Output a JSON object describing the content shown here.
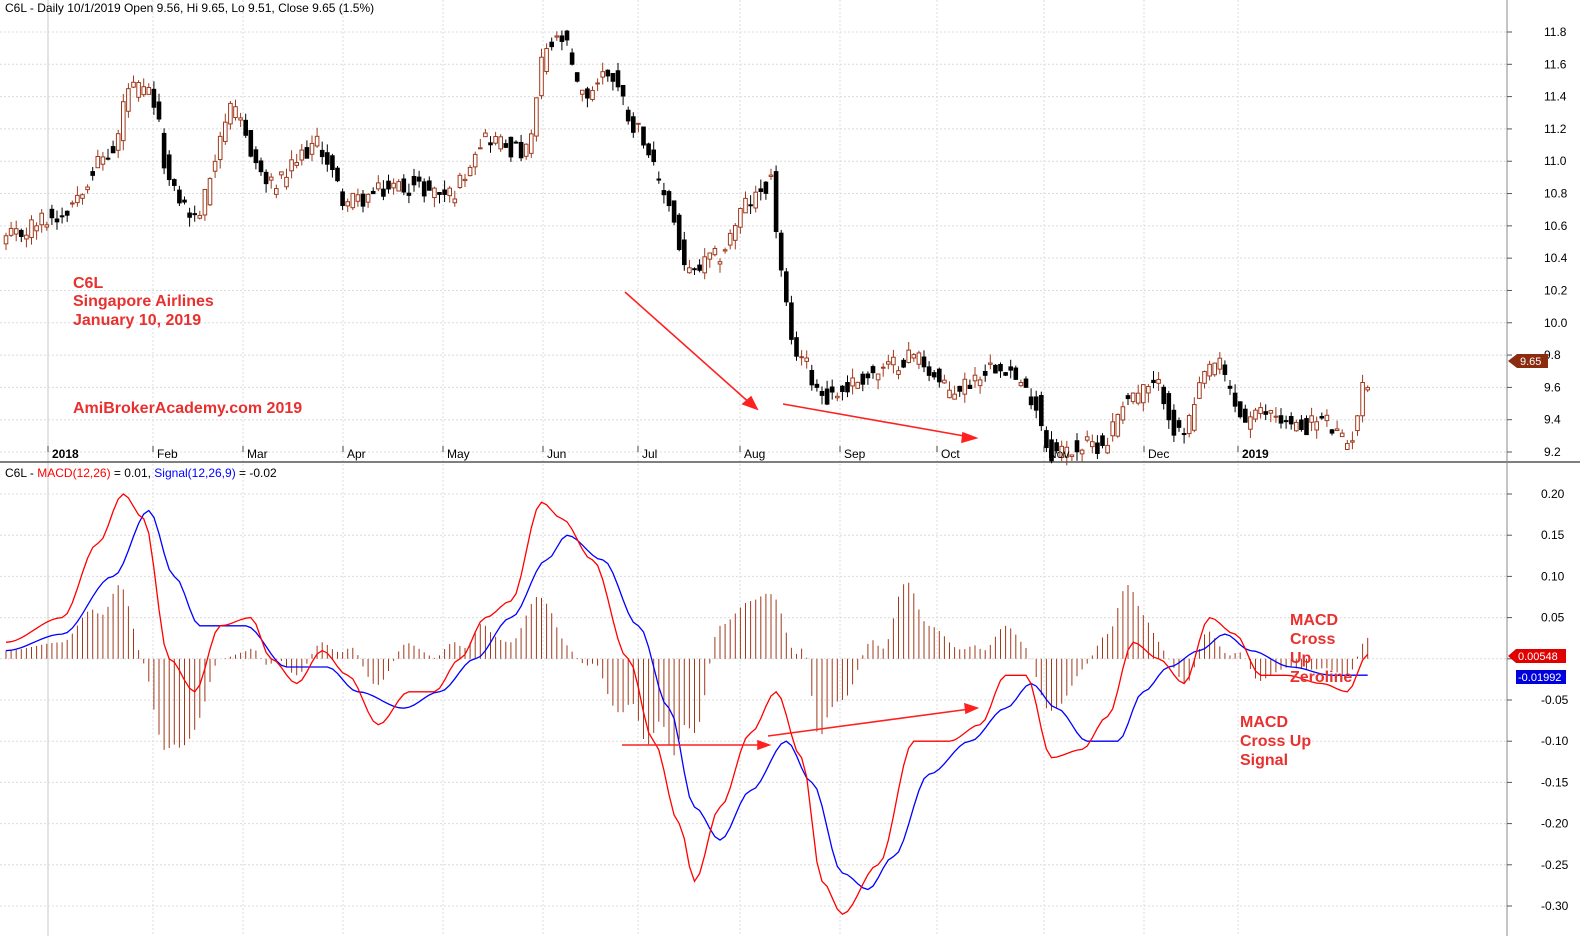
{
  "price_header": {
    "symbol": "C6L",
    "info": " - Daily 10/1/2019 Open 9.56, Hi 9.65, Lo 9.51, Close 9.65 (1.5%)"
  },
  "macd_header": {
    "symbol": "C6L - ",
    "macd_text": "MACD(12,26)",
    "macd_val": " = 0.01, ",
    "signal_text": "Signal(12,26,9)",
    "signal_val": " = -0.02"
  },
  "annotations": {
    "company_lines": [
      "C6L",
      "Singapore Airlines",
      "January 10, 2019"
    ],
    "site": "AmiBrokerAcademy.com  2019",
    "zeroline_lines": [
      "MACD",
      "Cross",
      "Up",
      "Zeroline"
    ],
    "signal_lines": [
      "MACD",
      "Cross Up",
      "Signal"
    ]
  },
  "badges": {
    "price_last": "9.65",
    "macd_last": "0.00548",
    "signal_last": "-0.01992"
  },
  "colors": {
    "up_candle": "#a0391c",
    "down_candle": "#000000",
    "macd_line": "#ff0000",
    "signal_line": "#0000ff",
    "histogram": "#a0391c",
    "annotation": "#e8312f",
    "price_badge": "#8b2b10",
    "macd_badge": "#e00000",
    "signal_badge": "#0000dd"
  },
  "chart_data": [
    {
      "type": "candlestick",
      "title": "C6L - Daily 10/1/2019 Open 9.56, Hi 9.65, Lo 9.51, Close 9.65 (1.5%)",
      "x_labels": [
        "2018",
        "Feb",
        "Mar",
        "Apr",
        "May",
        "Jun",
        "Jul",
        "Aug",
        "Sep",
        "Oct",
        "Nov",
        "Dec",
        "2019"
      ],
      "y_ticks": [
        9.2,
        9.4,
        9.6,
        9.8,
        10.0,
        10.2,
        10.4,
        10.6,
        10.8,
        11.0,
        11.2,
        11.4,
        11.6,
        11.8
      ],
      "ylim": [
        9.1,
        11.9
      ],
      "last_close": 9.65,
      "close_path": [
        [
          "2018-01-02",
          10.52
        ],
        [
          "2018-01-15",
          10.65
        ],
        [
          "2018-01-31",
          11.05
        ],
        [
          "2018-02-05",
          11.45
        ],
        [
          "2018-02-09",
          11.42
        ],
        [
          "2018-02-16",
          10.8
        ],
        [
          "2018-02-22",
          10.65
        ],
        [
          "2018-03-05",
          11.3
        ],
        [
          "2018-03-15",
          10.85
        ],
        [
          "2018-03-28",
          11.1
        ],
        [
          "2018-04-05",
          10.75
        ],
        [
          "2018-04-20",
          10.85
        ],
        [
          "2018-05-03",
          10.8
        ],
        [
          "2018-05-12",
          11.15
        ],
        [
          "2018-05-24",
          11.05
        ],
        [
          "2018-05-30",
          11.7
        ],
        [
          "2018-06-04",
          11.75
        ],
        [
          "2018-06-08",
          11.4
        ],
        [
          "2018-06-15",
          11.55
        ],
        [
          "2018-06-25",
          11.2
        ],
        [
          "2018-07-02",
          10.8
        ],
        [
          "2018-07-09",
          10.3
        ],
        [
          "2018-07-16",
          10.4
        ],
        [
          "2018-07-25",
          10.75
        ],
        [
          "2018-07-31",
          10.88
        ],
        [
          "2018-08-02",
          10.3
        ],
        [
          "2018-08-06",
          9.85
        ],
        [
          "2018-08-15",
          9.55
        ],
        [
          "2018-08-28",
          9.68
        ],
        [
          "2018-09-07",
          9.8
        ],
        [
          "2018-09-18",
          9.58
        ],
        [
          "2018-10-02",
          9.75
        ],
        [
          "2018-10-10",
          9.55
        ],
        [
          "2018-10-16",
          9.2
        ],
        [
          "2018-10-30",
          9.25
        ],
        [
          "2018-11-06",
          9.55
        ],
        [
          "2018-11-14",
          9.6
        ],
        [
          "2018-11-20",
          9.3
        ],
        [
          "2018-11-29",
          9.75
        ],
        [
          "2018-12-07",
          9.4
        ],
        [
          "2018-12-14",
          9.45
        ],
        [
          "2018-12-21",
          9.35
        ],
        [
          "2018-12-28",
          9.4
        ],
        [
          "2019-01-04",
          9.25
        ],
        [
          "2019-01-10",
          9.65
        ]
      ]
    },
    {
      "type": "line",
      "title": "C6L - MACD(12,26) = 0.01, Signal(12,26,9) = -0.02",
      "y_ticks": [
        0.2,
        0.15,
        0.1,
        0.05,
        0.0,
        -0.05,
        -0.1,
        -0.15,
        -0.2,
        -0.25,
        -0.3
      ],
      "ylim": [
        -0.315,
        0.225
      ],
      "series": [
        {
          "name": "MACD(12,26)",
          "points": [
            [
              "2018-01-02",
              0.02
            ],
            [
              "2018-01-17",
              0.05
            ],
            [
              "2018-01-26",
              0.14
            ],
            [
              "2018-02-02",
              0.2
            ],
            [
              "2018-02-08",
              0.17
            ],
            [
              "2018-02-15",
              0.0
            ],
            [
              "2018-02-22",
              -0.04
            ],
            [
              "2018-03-01",
              0.04
            ],
            [
              "2018-03-09",
              0.05
            ],
            [
              "2018-03-15",
              0.0
            ],
            [
              "2018-03-22",
              -0.03
            ],
            [
              "2018-03-29",
              0.01
            ],
            [
              "2018-04-05",
              -0.02
            ],
            [
              "2018-04-13",
              -0.08
            ],
            [
              "2018-04-21",
              -0.04
            ],
            [
              "2018-04-30",
              -0.04
            ],
            [
              "2018-05-07",
              0.0
            ],
            [
              "2018-05-14",
              0.05
            ],
            [
              "2018-05-21",
              0.07
            ],
            [
              "2018-05-29",
              0.19
            ],
            [
              "2018-06-04",
              0.17
            ],
            [
              "2018-06-12",
              0.12
            ],
            [
              "2018-06-21",
              0.0
            ],
            [
              "2018-06-28",
              -0.1
            ],
            [
              "2018-07-05",
              -0.2
            ],
            [
              "2018-07-10",
              -0.27
            ],
            [
              "2018-07-17",
              -0.18
            ],
            [
              "2018-07-25",
              -0.09
            ],
            [
              "2018-08-01",
              -0.04
            ],
            [
              "2018-08-08",
              -0.12
            ],
            [
              "2018-08-14",
              -0.27
            ],
            [
              "2018-08-20",
              -0.31
            ],
            [
              "2018-08-29",
              -0.25
            ],
            [
              "2018-09-07",
              -0.1
            ],
            [
              "2018-09-18",
              -0.1
            ],
            [
              "2018-09-26",
              -0.08
            ],
            [
              "2018-10-03",
              -0.02
            ],
            [
              "2018-10-09",
              -0.02
            ],
            [
              "2018-10-16",
              -0.12
            ],
            [
              "2018-10-24",
              -0.11
            ],
            [
              "2018-10-31",
              -0.07
            ],
            [
              "2018-11-07",
              0.02
            ],
            [
              "2018-11-14",
              0.0
            ],
            [
              "2018-11-21",
              -0.03
            ],
            [
              "2018-11-28",
              0.05
            ],
            [
              "2018-12-05",
              0.03
            ],
            [
              "2018-12-12",
              -0.02
            ],
            [
              "2018-12-19",
              -0.02
            ],
            [
              "2018-12-28",
              -0.03
            ],
            [
              "2019-01-04",
              -0.04
            ],
            [
              "2019-01-10",
              0.00548
            ]
          ]
        },
        {
          "name": "Signal(12,26,9)",
          "points": [
            [
              "2018-01-02",
              0.01
            ],
            [
              "2018-01-17",
              0.03
            ],
            [
              "2018-01-31",
              0.1
            ],
            [
              "2018-02-09",
              0.18
            ],
            [
              "2018-02-16",
              0.1
            ],
            [
              "2018-02-23",
              0.04
            ],
            [
              "2018-03-08",
              0.04
            ],
            [
              "2018-03-20",
              -0.01
            ],
            [
              "2018-03-30",
              -0.01
            ],
            [
              "2018-04-09",
              -0.04
            ],
            [
              "2018-04-20",
              -0.06
            ],
            [
              "2018-05-01",
              -0.04
            ],
            [
              "2018-05-10",
              0.0
            ],
            [
              "2018-05-21",
              0.05
            ],
            [
              "2018-05-30",
              0.12
            ],
            [
              "2018-06-05",
              0.15
            ],
            [
              "2018-06-14",
              0.12
            ],
            [
              "2018-06-25",
              0.04
            ],
            [
              "2018-07-03",
              -0.06
            ],
            [
              "2018-07-10",
              -0.18
            ],
            [
              "2018-07-17",
              -0.22
            ],
            [
              "2018-07-25",
              -0.16
            ],
            [
              "2018-08-03",
              -0.1
            ],
            [
              "2018-08-10",
              -0.15
            ],
            [
              "2018-08-20",
              -0.26
            ],
            [
              "2018-08-27",
              -0.28
            ],
            [
              "2018-09-03",
              -0.24
            ],
            [
              "2018-09-12",
              -0.14
            ],
            [
              "2018-09-24",
              -0.1
            ],
            [
              "2018-10-03",
              -0.06
            ],
            [
              "2018-10-10",
              -0.03
            ],
            [
              "2018-10-17",
              -0.06
            ],
            [
              "2018-10-25",
              -0.1
            ],
            [
              "2018-11-02",
              -0.1
            ],
            [
              "2018-11-09",
              -0.04
            ],
            [
              "2018-11-16",
              -0.01
            ],
            [
              "2018-11-26",
              0.01
            ],
            [
              "2018-12-03",
              0.03
            ],
            [
              "2018-12-10",
              0.01
            ],
            [
              "2018-12-20",
              -0.01
            ],
            [
              "2019-01-01",
              -0.02
            ],
            [
              "2019-01-10",
              -0.01992
            ]
          ]
        }
      ],
      "histogram": "MACD minus Signal",
      "last_values": {
        "MACD(12,26)": 0.00548,
        "Signal(12,26,9)": -0.01992
      }
    }
  ]
}
